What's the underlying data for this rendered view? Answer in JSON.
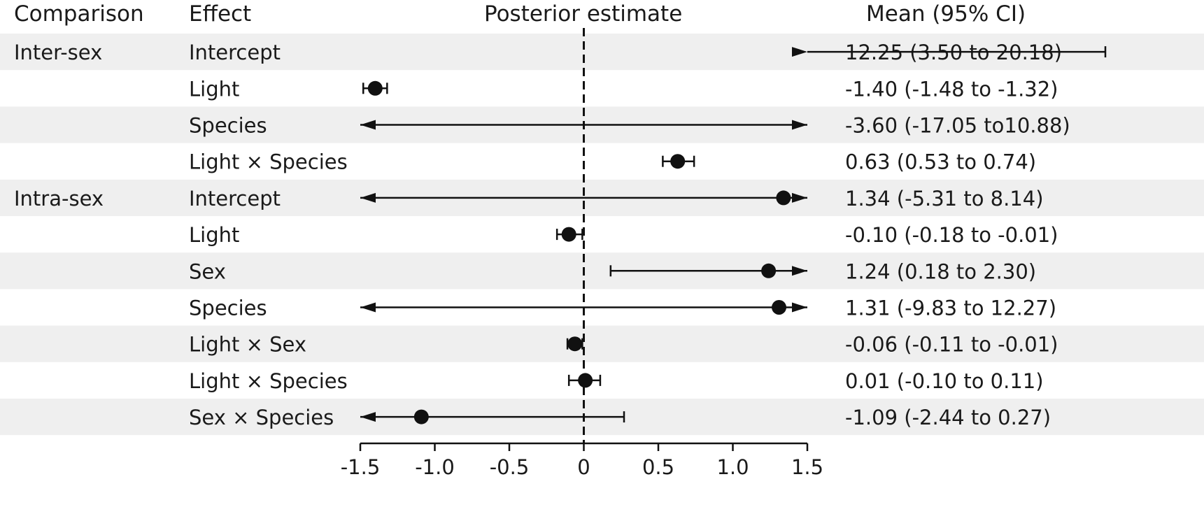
{
  "headers": {
    "comparison": "Comparison",
    "effect": "Effect",
    "posterior": "Posterior estimate",
    "mean_ci": "Mean (95% CI)"
  },
  "chart_data": {
    "type": "forest",
    "title": "",
    "xlabel": "Posterior estimate",
    "xlim": [
      -1.5,
      1.5
    ],
    "xticks": [
      -1.5,
      -1.0,
      -0.5,
      0,
      0.5,
      1.0,
      1.5
    ],
    "xtick_labels": [
      "-1.5",
      "-1.0",
      "-0.5",
      "0",
      "0.5",
      "1.0",
      "1.5"
    ],
    "reference_line": 0,
    "reference_line_style": "dashed",
    "row_shading": "alternating grey/white",
    "rows": [
      {
        "group": "Inter-sex",
        "effect": "Intercept",
        "mean": 12.25,
        "lower": 3.5,
        "upper": 20.18,
        "label": "12.25  (3.50 to 20.18)"
      },
      {
        "group": "",
        "effect": "Light",
        "mean": -1.4,
        "lower": -1.48,
        "upper": -1.32,
        "label": "-1.40  (-1.48 to -1.32)"
      },
      {
        "group": "",
        "effect": "Species",
        "mean": -3.6,
        "lower": -17.05,
        "upper": 10.88,
        "label": "-3.60  (-17.05 to10.88)"
      },
      {
        "group": "",
        "effect": "Light × Species",
        "mean": 0.63,
        "lower": 0.53,
        "upper": 0.74,
        "label": "0.63 (0.53 to 0.74)"
      },
      {
        "group": "Intra-sex",
        "effect": "Intercept",
        "mean": 1.34,
        "lower": -5.31,
        "upper": 8.14,
        "label": "1.34 (-5.31 to 8.14)"
      },
      {
        "group": "",
        "effect": "Light",
        "mean": -0.1,
        "lower": -0.18,
        "upper": -0.01,
        "label": "-0.10  (-0.18 to -0.01)"
      },
      {
        "group": "",
        "effect": "Sex",
        "mean": 1.24,
        "lower": 0.18,
        "upper": 2.3,
        "label": "1.24 (0.18 to 2.30)"
      },
      {
        "group": "",
        "effect": "Species",
        "mean": 1.31,
        "lower": -9.83,
        "upper": 12.27,
        "label": "1.31 (-9.83 to 12.27)"
      },
      {
        "group": "",
        "effect": "Light × Sex",
        "mean": -0.06,
        "lower": -0.11,
        "upper": -0.01,
        "label": "-0.06  (-0.11 to -0.01)"
      },
      {
        "group": "",
        "effect": "Light × Species",
        "mean": 0.01,
        "lower": -0.1,
        "upper": 0.11,
        "label": "0.01 (-0.10 to 0.11)"
      },
      {
        "group": "",
        "effect": "Sex × Species",
        "mean": -1.09,
        "lower": -2.44,
        "upper": 0.27,
        "label": "-1.09  (-2.44 to 0.27)"
      }
    ]
  }
}
